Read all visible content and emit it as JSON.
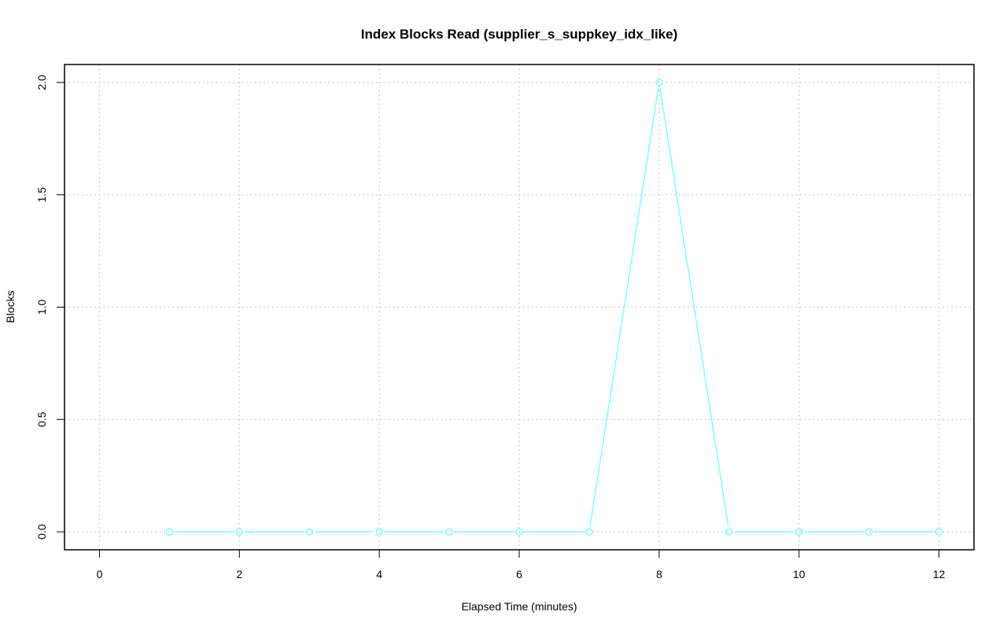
{
  "chart_data": {
    "type": "line",
    "title": "Index Blocks Read (supplier_s_suppkey_idx_like)",
    "xlabel": "Elapsed Time (minutes)",
    "ylabel": "Blocks",
    "xlim": [
      -0.5,
      12.5
    ],
    "ylim": [
      -0.08,
      2.08
    ],
    "xticks": [
      "0",
      "2",
      "4",
      "6",
      "8",
      "10",
      "12"
    ],
    "yticks": [
      "0.0",
      "0.5",
      "1.0",
      "1.5",
      "2.0"
    ],
    "grid": true,
    "series": [
      {
        "color": "#80FFFF",
        "marker": "open-circle",
        "x": [
          1,
          2,
          3,
          4,
          5,
          6,
          7,
          8,
          9,
          10,
          11,
          12
        ],
        "y": [
          0,
          0,
          0,
          0,
          0,
          0,
          0,
          2,
          0,
          0,
          0,
          0
        ]
      }
    ]
  }
}
